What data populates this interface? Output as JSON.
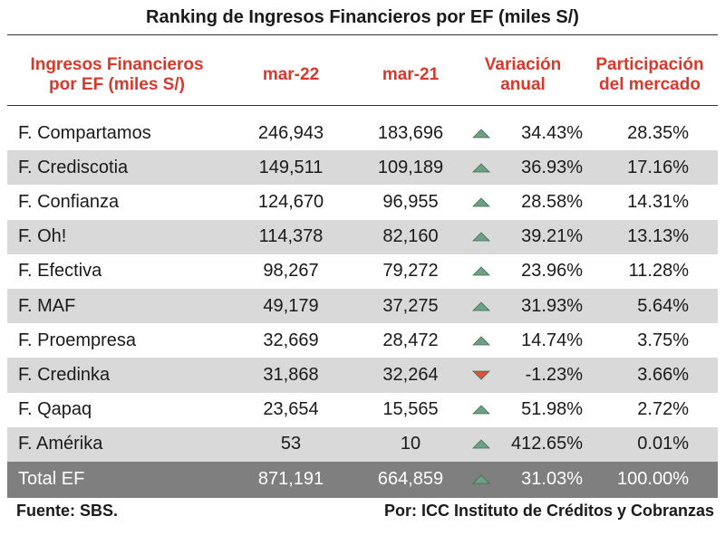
{
  "title": "Ranking de Ingresos Financieros por EF (miles S/)",
  "headers": {
    "col1_line1": "Ingresos Financieros",
    "col1_line2": "por EF (miles S/)",
    "col2": "mar-22",
    "col3": "mar-21",
    "col4_line1": "Variación",
    "col4_line2": "anual",
    "col5_line1": "Participación",
    "col5_line2": "del mercado"
  },
  "colors": {
    "header_text": "#d9392b",
    "shaded_row": "#d9d9d9",
    "total_row": "#7f7f7f",
    "up_icon": "#6f9f84",
    "down_icon": "#d8553a"
  },
  "rows": [
    {
      "name": "F. Compartamos",
      "mar22": "246,943",
      "mar21": "183,696",
      "trend": "up",
      "variation": "34.43%",
      "share": "28.35%"
    },
    {
      "name": "F. Crediscotia",
      "mar22": "149,511",
      "mar21": "109,189",
      "trend": "up",
      "variation": "36.93%",
      "share": "17.16%"
    },
    {
      "name": "F. Confianza",
      "mar22": "124,670",
      "mar21": "96,955",
      "trend": "up",
      "variation": "28.58%",
      "share": "14.31%"
    },
    {
      "name": "F. Oh!",
      "mar22": "114,378",
      "mar21": "82,160",
      "trend": "up",
      "variation": "39.21%",
      "share": "13.13%"
    },
    {
      "name": "F. Efectiva",
      "mar22": "98,267",
      "mar21": "79,272",
      "trend": "up",
      "variation": "23.96%",
      "share": "11.28%"
    },
    {
      "name": "F. MAF",
      "mar22": "49,179",
      "mar21": "37,275",
      "trend": "up",
      "variation": "31.93%",
      "share": "5.64%"
    },
    {
      "name": "F. Proempresa",
      "mar22": "32,669",
      "mar21": "28,472",
      "trend": "up",
      "variation": "14.74%",
      "share": "3.75%"
    },
    {
      "name": "F. Credinka",
      "mar22": "31,868",
      "mar21": "32,264",
      "trend": "down",
      "variation": "-1.23%",
      "share": "3.66%"
    },
    {
      "name": "F. Qapaq",
      "mar22": "23,654",
      "mar21": "15,565",
      "trend": "up",
      "variation": "51.98%",
      "share": "2.72%"
    },
    {
      "name": "F. Amérika",
      "mar22": "53",
      "mar21": "10",
      "trend": "up",
      "variation": "412.65%",
      "share": "0.01%"
    }
  ],
  "total": {
    "name": "Total EF",
    "mar22": "871,191",
    "mar21": "664,859",
    "trend": "up",
    "variation": "31.03%",
    "share": "100.00%"
  },
  "footer": {
    "source": "Fuente: SBS.",
    "credit": "Por: ICC Instituto de Créditos y Cobranzas"
  }
}
